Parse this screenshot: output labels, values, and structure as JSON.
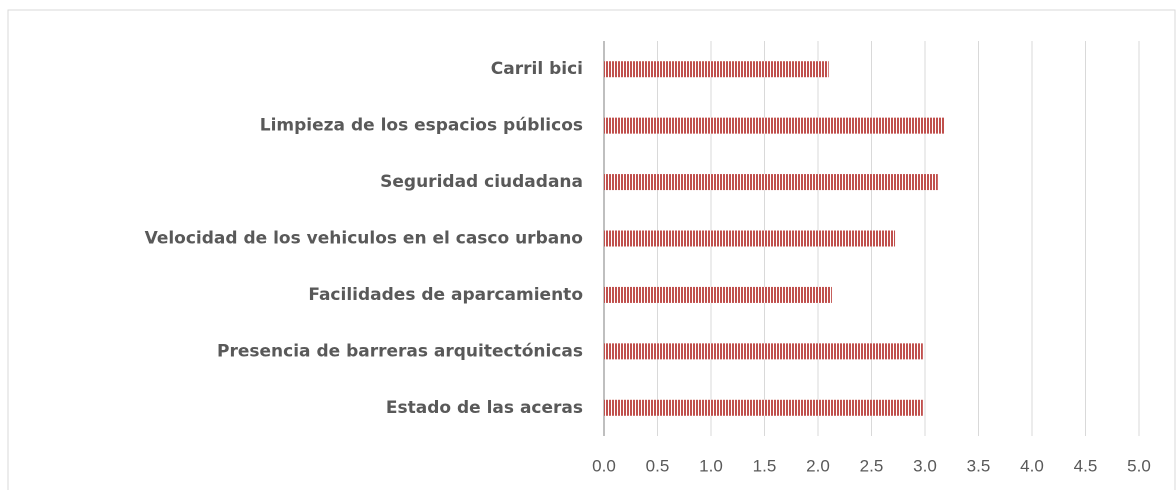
{
  "chart_data": {
    "type": "bar",
    "orientation": "horizontal",
    "categories": [
      "Carril bici",
      "Limpieza de los espacios públicos",
      "Seguridad ciudadana",
      "Velocidad de los vehiculos en el casco urbano",
      "Facilidades de aparcamiento",
      "Presencia de barreras arquitectónicas",
      "Estado de las aceras"
    ],
    "values": [
      2.1,
      3.18,
      3.12,
      2.72,
      2.13,
      2.98,
      2.98
    ],
    "color": "#c0504d",
    "xlim": [
      0,
      5
    ],
    "xticks": [
      {
        "value": 0,
        "label": "0.0"
      },
      {
        "value": 0.5,
        "label": "0.5"
      },
      {
        "value": 1,
        "label": "1.0"
      },
      {
        "value": 1.5,
        "label": "1.5"
      },
      {
        "value": 2,
        "label": "2.0"
      },
      {
        "value": 2.5,
        "label": "2.5"
      },
      {
        "value": 3,
        "label": "3.0"
      },
      {
        "value": 3.5,
        "label": "3.5"
      },
      {
        "value": 4,
        "label": "4.0"
      },
      {
        "value": 4.5,
        "label": "4.5"
      },
      {
        "value": 5,
        "label": "5.0"
      }
    ],
    "grid": true
  }
}
